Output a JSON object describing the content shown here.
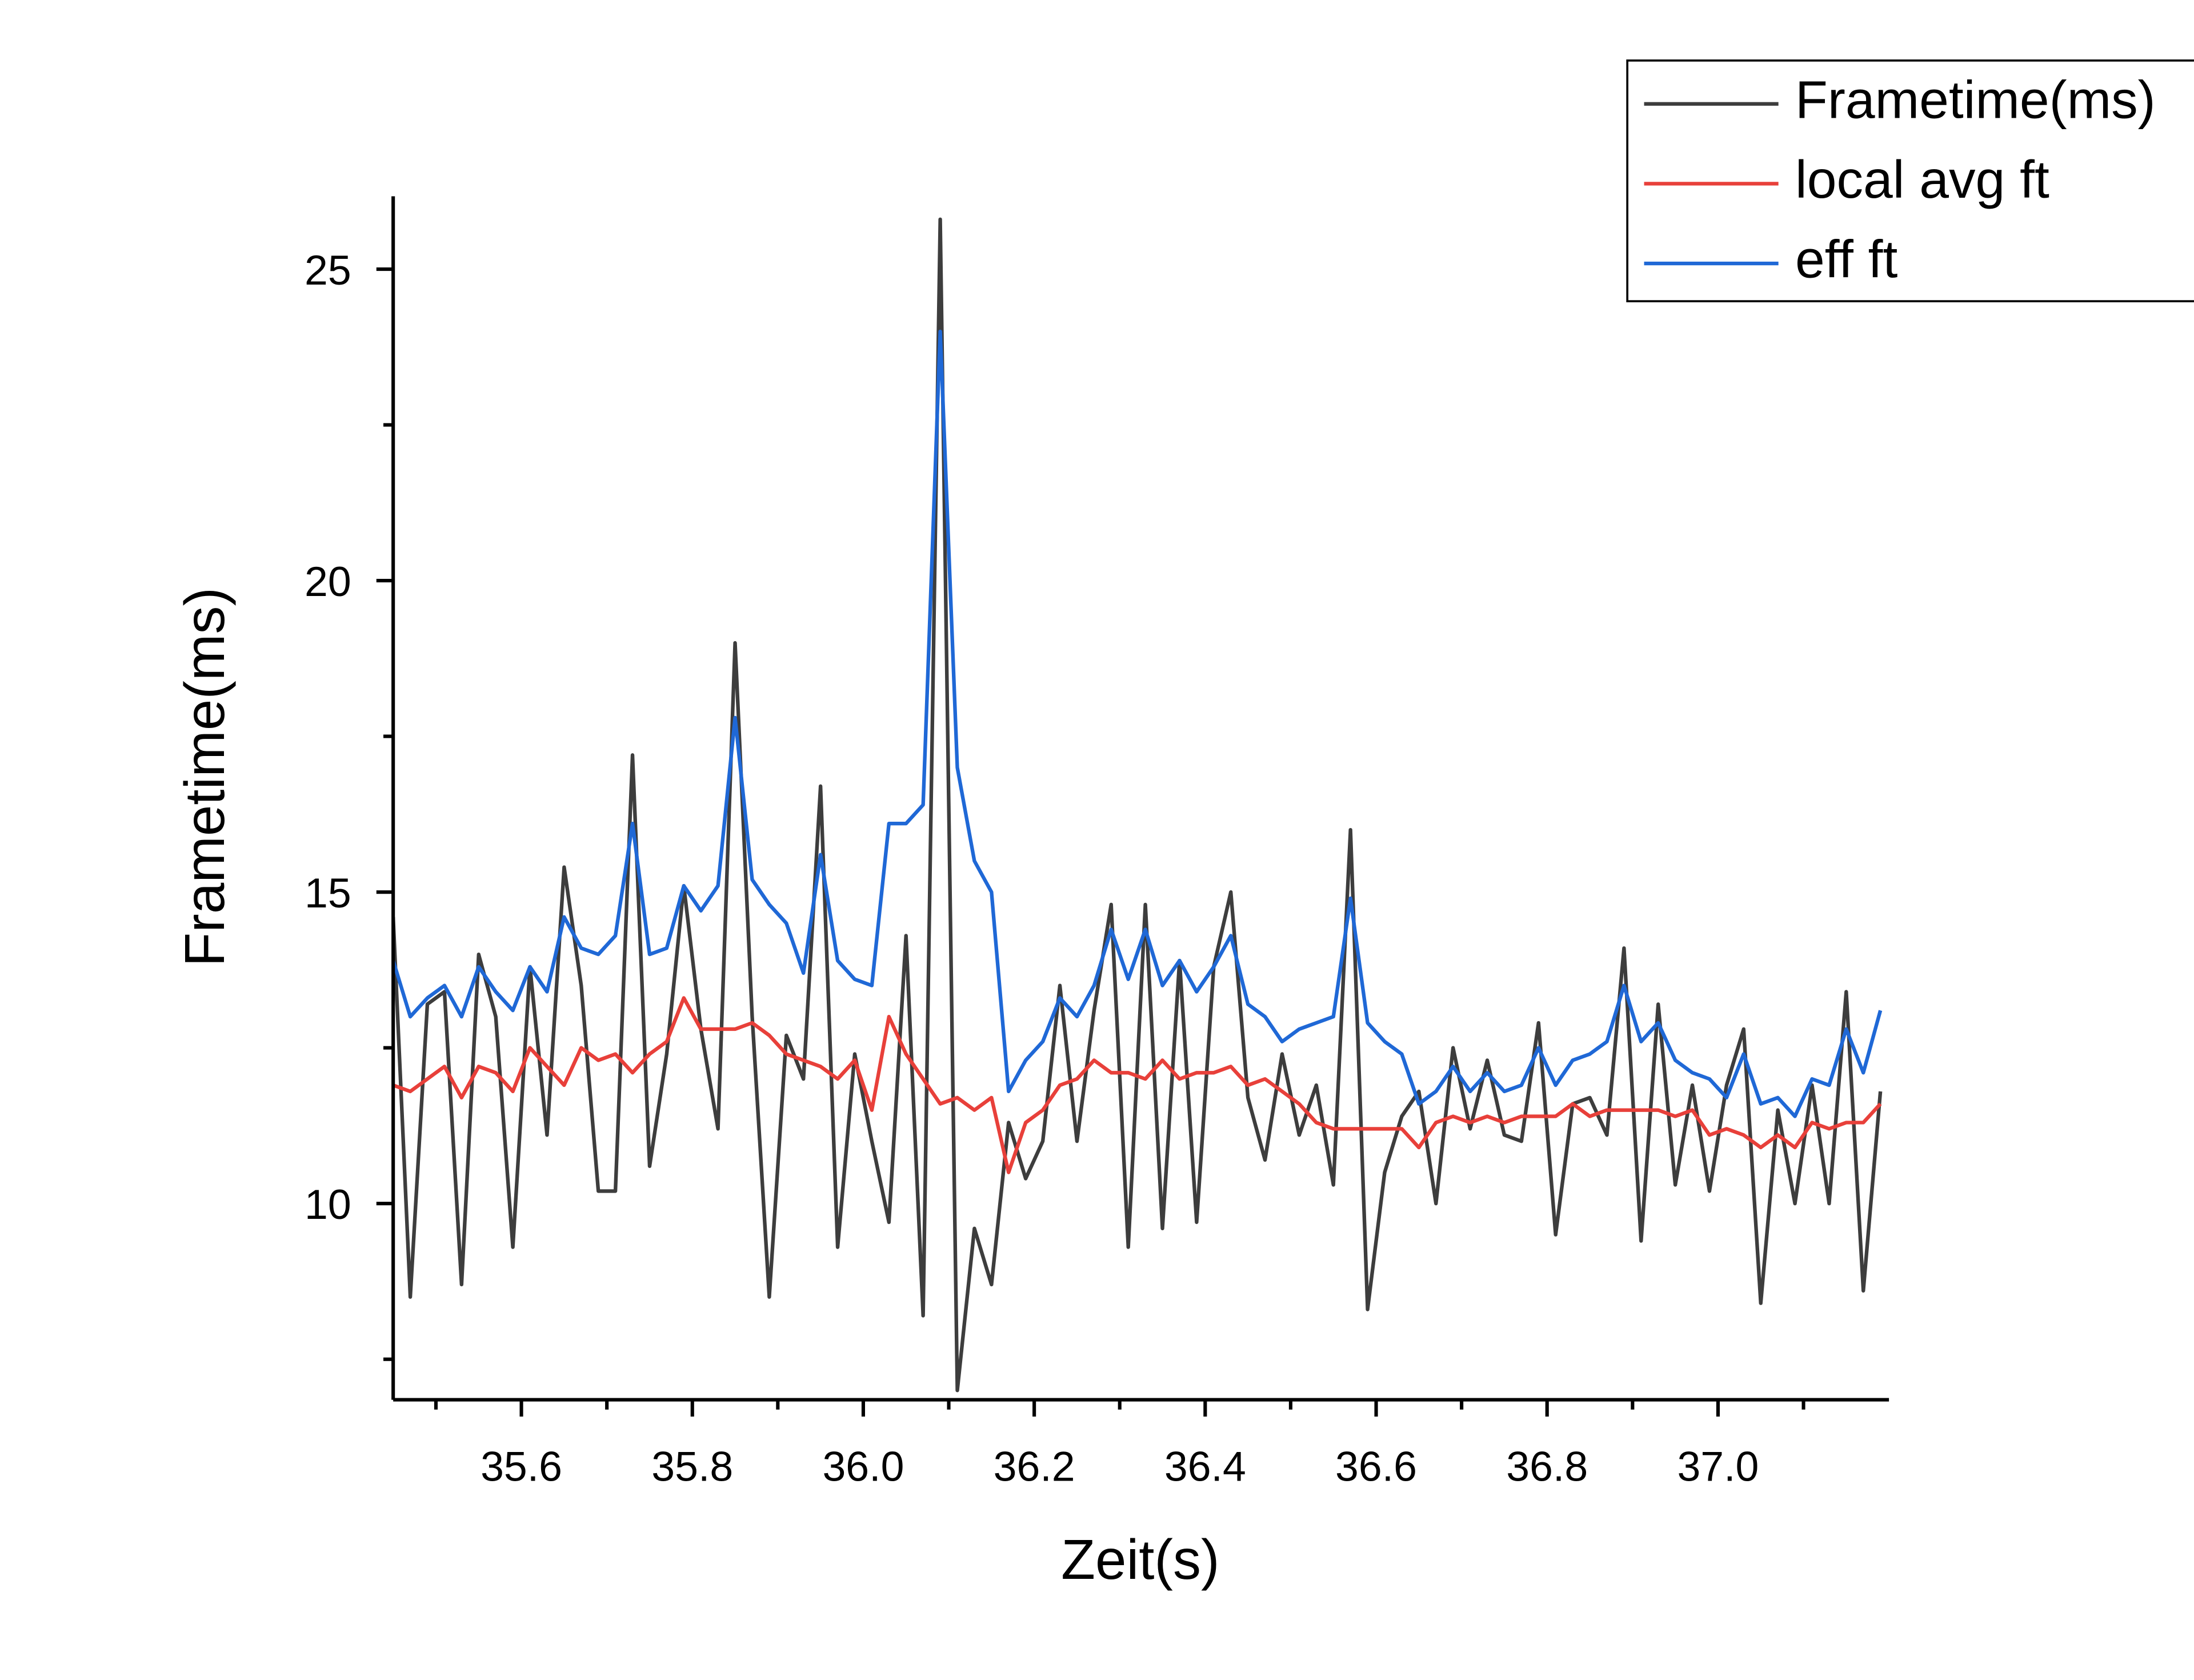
{
  "chart_data": {
    "type": "line",
    "x_label": "Zeit(s)",
    "y_label": "Frametime(ms)",
    "x": [
      35.45,
      35.47,
      35.49,
      35.51,
      35.53,
      35.55,
      35.57,
      35.59,
      35.61,
      35.63,
      35.65,
      35.67,
      35.69,
      35.71,
      35.73,
      35.75,
      35.77,
      35.79,
      35.81,
      35.83,
      35.85,
      35.87,
      35.89,
      35.91,
      35.93,
      35.95,
      35.97,
      35.99,
      36.01,
      36.03,
      36.05,
      36.07,
      36.09,
      36.11,
      36.13,
      36.15,
      36.17,
      36.19,
      36.21,
      36.23,
      36.25,
      36.27,
      36.29,
      36.31,
      36.33,
      36.35,
      36.37,
      36.39,
      36.41,
      36.43,
      36.45,
      36.47,
      36.49,
      36.51,
      36.53,
      36.55,
      36.57,
      36.59,
      36.61,
      36.63,
      36.65,
      36.67,
      36.69,
      36.71,
      36.73,
      36.75,
      36.77,
      36.79,
      36.81,
      36.83,
      36.85,
      36.87,
      36.89,
      36.91,
      36.93,
      36.95,
      36.97,
      36.99,
      37.01,
      37.03,
      37.05,
      37.07,
      37.09,
      37.11,
      37.13,
      37.15,
      37.17,
      37.19
    ],
    "series": [
      {
        "name": "Frametime(ms)",
        "color": "#3d3d3d",
        "values": [
          14.6,
          8.5,
          13.2,
          13.4,
          8.7,
          14.0,
          13.0,
          9.3,
          13.8,
          11.1,
          15.4,
          13.5,
          10.2,
          10.2,
          17.2,
          10.6,
          12.4,
          15.1,
          12.8,
          11.2,
          19.0,
          13.0,
          8.5,
          12.7,
          12.0,
          16.7,
          9.3,
          12.4,
          11.0,
          9.7,
          14.3,
          8.2,
          25.8,
          7.0,
          9.6,
          8.7,
          11.3,
          10.4,
          11.0,
          13.5,
          11.0,
          13.1,
          14.8,
          9.3,
          14.8,
          9.6,
          13.9,
          9.7,
          13.8,
          15.0,
          11.7,
          10.7,
          12.4,
          11.1,
          11.9,
          10.3,
          16.0,
          8.3,
          10.5,
          11.4,
          11.8,
          10.0,
          12.5,
          11.2,
          12.3,
          11.1,
          11.0,
          12.9,
          9.5,
          11.6,
          11.7,
          11.1,
          14.1,
          9.4,
          13.2,
          10.3,
          11.9,
          10.2,
          11.9,
          12.8,
          8.4,
          11.5,
          10.0,
          11.9,
          10.0,
          13.4,
          8.6,
          11.8
        ]
      },
      {
        "name": "local avg ft",
        "color": "#e8403a",
        "values": [
          11.9,
          11.8,
          12.0,
          12.2,
          11.7,
          12.2,
          12.1,
          11.8,
          12.5,
          12.2,
          11.9,
          12.5,
          12.3,
          12.4,
          12.1,
          12.4,
          12.6,
          13.3,
          12.8,
          12.8,
          12.8,
          12.9,
          12.7,
          12.4,
          12.3,
          12.2,
          12.0,
          12.3,
          11.5,
          13.0,
          12.4,
          12.0,
          11.6,
          11.7,
          11.5,
          11.7,
          10.5,
          11.3,
          11.5,
          11.9,
          12.0,
          12.3,
          12.1,
          12.1,
          12.0,
          12.3,
          12.0,
          12.1,
          12.1,
          12.2,
          11.9,
          12.0,
          11.8,
          11.6,
          11.3,
          11.2,
          11.2,
          11.2,
          11.2,
          11.2,
          10.9,
          11.3,
          11.4,
          11.3,
          11.4,
          11.3,
          11.4,
          11.4,
          11.4,
          11.6,
          11.4,
          11.5,
          11.5,
          11.5,
          11.5,
          11.4,
          11.5,
          11.1,
          11.2,
          11.1,
          10.9,
          11.1,
          10.9,
          11.3,
          11.2,
          11.3,
          11.3,
          11.6
        ]
      },
      {
        "name": "eff ft",
        "color": "#1f68d6",
        "values": [
          13.9,
          13.0,
          13.3,
          13.5,
          13.0,
          13.8,
          13.4,
          13.1,
          13.8,
          13.4,
          14.6,
          14.1,
          14.0,
          14.3,
          16.1,
          14.0,
          14.1,
          15.1,
          14.7,
          15.1,
          17.8,
          15.2,
          14.8,
          14.5,
          13.7,
          15.6,
          13.9,
          13.6,
          13.5,
          16.1,
          16.1,
          16.4,
          24.0,
          17.0,
          15.5,
          15.0,
          11.8,
          12.3,
          12.6,
          13.3,
          13.0,
          13.5,
          14.4,
          13.6,
          14.4,
          13.5,
          13.9,
          13.4,
          13.8,
          14.3,
          13.2,
          13.0,
          12.6,
          12.8,
          12.9,
          13.0,
          14.9,
          12.9,
          12.6,
          12.4,
          11.6,
          11.8,
          12.2,
          11.8,
          12.1,
          11.8,
          11.9,
          12.5,
          11.9,
          12.3,
          12.4,
          12.6,
          13.5,
          12.6,
          12.9,
          12.3,
          12.1,
          12.0,
          11.7,
          12.4,
          11.6,
          11.7,
          11.4,
          12.0,
          11.9,
          12.8,
          12.1,
          13.1
        ]
      }
    ],
    "xlim": [
      35.45,
      37.2
    ],
    "ylim": [
      6.85,
      26.17
    ],
    "xticks": [
      35.6,
      35.8,
      {
        "value": 36,
        "label": "36.0"
      },
      36.2,
      36.4,
      36.6,
      36.8,
      {
        "value": 37,
        "label": "37.0"
      }
    ],
    "xminorticks": [
      35.5,
      35.7,
      35.9,
      36.1,
      36.3,
      36.5,
      36.7,
      36.9,
      37.1
    ],
    "yticks": [
      10,
      15,
      20,
      25
    ],
    "yminorticks": [
      7.5,
      12.5,
      17.5,
      22.5
    ],
    "legend": "upper right",
    "grid": false
  }
}
